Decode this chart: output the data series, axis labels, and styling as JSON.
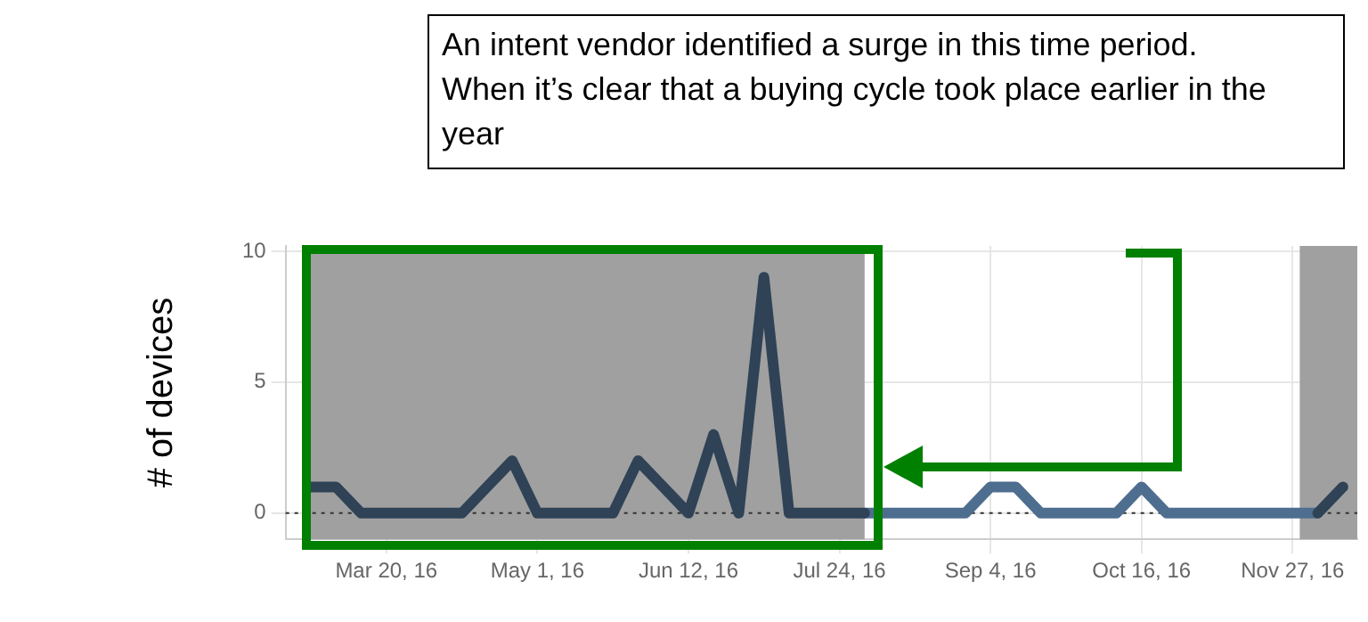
{
  "chart_data": {
    "type": "line",
    "ylabel": "# of devices",
    "annotations": [
      "An intent vendor identified a surge in this time period.\nWhen it’s clear that a buying cycle took place earlier in the year"
    ],
    "x": [
      "2016-02-28",
      "2016-03-06",
      "2016-03-13",
      "2016-03-20",
      "2016-03-27",
      "2016-04-03",
      "2016-04-10",
      "2016-04-17",
      "2016-04-24",
      "2016-05-01",
      "2016-05-08",
      "2016-05-15",
      "2016-05-22",
      "2016-05-29",
      "2016-06-05",
      "2016-06-12",
      "2016-06-19",
      "2016-06-26",
      "2016-07-03",
      "2016-07-10",
      "2016-07-17",
      "2016-07-24",
      "2016-07-31",
      "2016-08-07",
      "2016-08-14",
      "2016-08-21",
      "2016-08-28",
      "2016-09-04",
      "2016-09-11",
      "2016-09-18",
      "2016-09-25",
      "2016-10-02",
      "2016-10-09",
      "2016-10-16",
      "2016-10-23",
      "2016-10-30",
      "2016-11-06",
      "2016-11-13",
      "2016-11-20",
      "2016-11-27",
      "2016-12-04",
      "2016-12-11"
    ],
    "series": [
      {
        "color": "#2f4256",
        "values": [
          1,
          1,
          0,
          0,
          0,
          0,
          0,
          1,
          2,
          0,
          0,
          0,
          0,
          2,
          1,
          0,
          3,
          0,
          9,
          0,
          0,
          0,
          0,
          null,
          null,
          null,
          null,
          null,
          null,
          null,
          null,
          null,
          null,
          null,
          null,
          null,
          null,
          null,
          null,
          null,
          0,
          1
        ]
      },
      {
        "color": "#4e6e90",
        "values": [
          null,
          null,
          null,
          null,
          null,
          null,
          null,
          null,
          null,
          null,
          null,
          null,
          null,
          null,
          null,
          null,
          null,
          null,
          null,
          null,
          null,
          null,
          0,
          0,
          0,
          0,
          0,
          1,
          1,
          0,
          0,
          0,
          0,
          1,
          0,
          0,
          0,
          0,
          0,
          0,
          0,
          null
        ]
      }
    ],
    "xlim": [
      "2016-02-21",
      "2016-12-15"
    ],
    "xticks": [
      {
        "value": "2016-03-20",
        "label": "Mar 20, 16"
      },
      {
        "value": "2016-05-01",
        "label": "May 1, 16"
      },
      {
        "value": "2016-06-12",
        "label": "Jun 12, 16"
      },
      {
        "value": "2016-07-24",
        "label": "Jul 24, 16"
      },
      {
        "value": "2016-09-04",
        "label": "Sep 4, 16"
      },
      {
        "value": "2016-10-16",
        "label": "Oct 16, 16"
      },
      {
        "value": "2016-11-27",
        "label": "Nov 27, 16"
      }
    ],
    "ylim": [
      -1,
      10.2
    ],
    "yticks": [
      0,
      5,
      10
    ],
    "ref_lines": [
      {
        "axis": "y",
        "value": 0,
        "label": null,
        "color": "#333333",
        "line_style": "dotted"
      }
    ],
    "bands": [
      {
        "axis": "x",
        "from": "2016-02-26",
        "to": "2016-07-31",
        "label": null,
        "color": "#a0a0a0"
      },
      {
        "axis": "x",
        "from": "2016-11-29",
        "to": "2016-12-15",
        "label": null,
        "color": "#a0a0a0"
      }
    ],
    "grid": true,
    "legend": false,
    "marker": "none",
    "line_style": "solid"
  }
}
